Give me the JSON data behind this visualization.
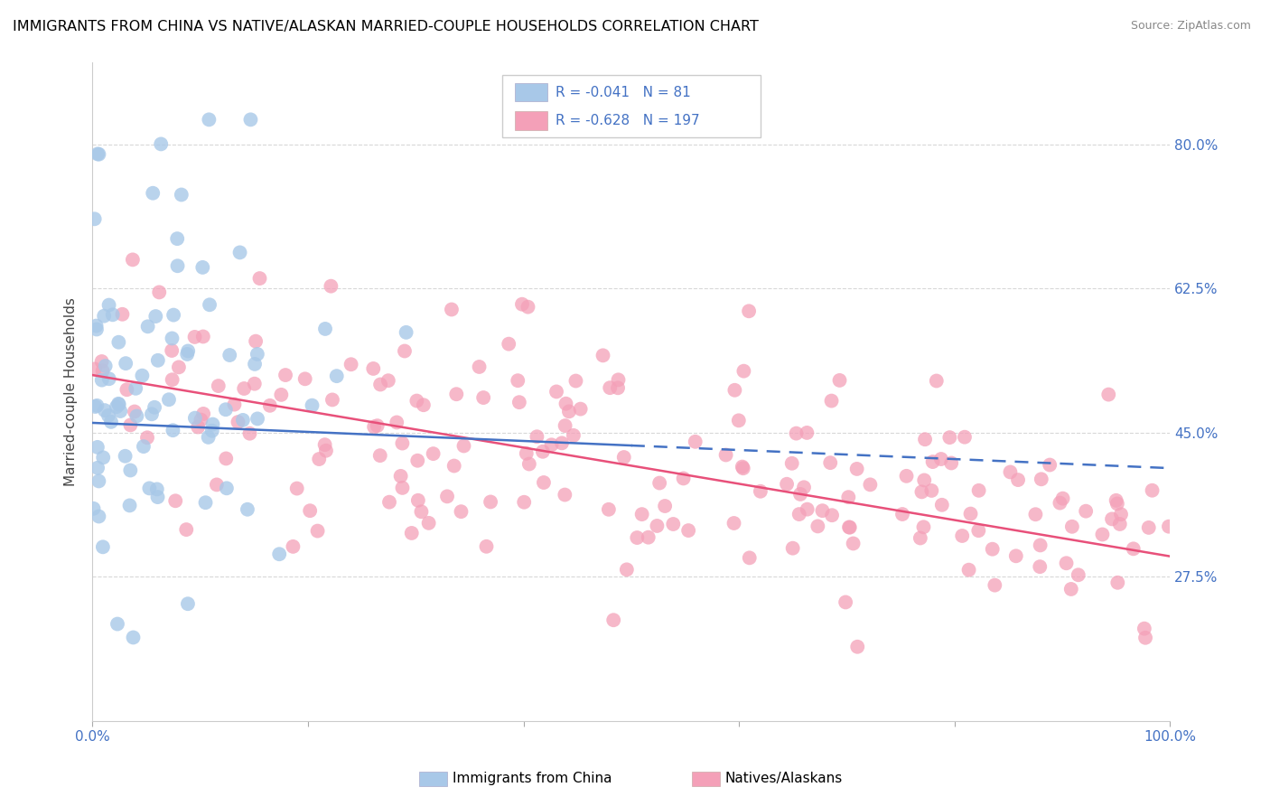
{
  "title": "IMMIGRANTS FROM CHINA VS NATIVE/ALASKAN MARRIED-COUPLE HOUSEHOLDS CORRELATION CHART",
  "source": "Source: ZipAtlas.com",
  "ylabel": "Married-couple Households",
  "ytick_values": [
    0.8,
    0.625,
    0.45,
    0.275
  ],
  "ytick_labels": [
    "80.0%",
    "62.5%",
    "45.0%",
    "27.5%"
  ],
  "legend_blue_label": "Immigrants from China",
  "legend_pink_label": "Natives/Alaskans",
  "blue_R": "-0.041",
  "blue_N": "81",
  "pink_R": "-0.628",
  "pink_N": "197",
  "blue_color": "#a8c8e8",
  "pink_color": "#f4a0b8",
  "blue_line_color": "#4472c4",
  "pink_line_color": "#e8507a",
  "text_color": "#4472c4",
  "background_color": "#ffffff",
  "grid_color": "#d8d8d8",
  "xlim": [
    0,
    100
  ],
  "ylim": [
    0.1,
    0.9
  ],
  "blue_line_x_solid_end": 50,
  "blue_line_x_end": 100
}
